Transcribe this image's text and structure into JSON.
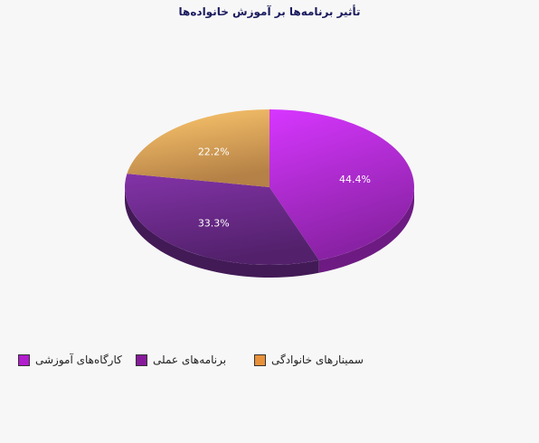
{
  "chart_data": {
    "type": "pie",
    "title": "تأثیر برنامه‌ها بر آموزش خانواده‌ها",
    "categories": [
      "کارگاه‌های آموزشی",
      "برنامه‌های عملی",
      "سمینارهای خانوادگی"
    ],
    "values": [
      44.4,
      33.3,
      22.2
    ],
    "value_labels": [
      "44.4%",
      "33.3%",
      "22.2%"
    ],
    "colors": [
      "#b02cd2",
      "#6b2a8a",
      "#e8a55a"
    ],
    "legend_colors": [
      "#b21dce",
      "#861a9a",
      "#e8913a"
    ],
    "legend_position": "bottom",
    "style": "3d-pie"
  }
}
